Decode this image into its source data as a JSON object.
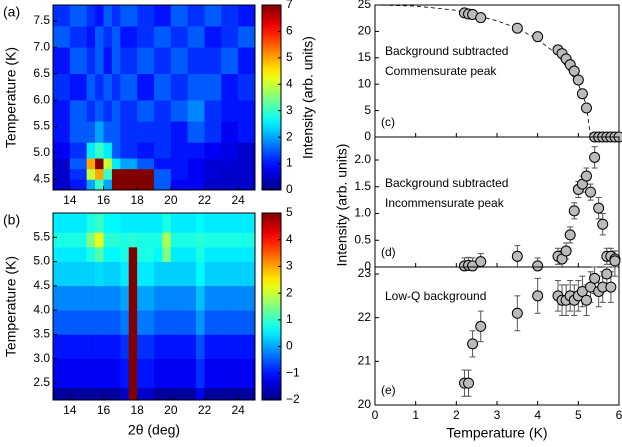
{
  "chart_data": [
    {
      "type": "heatmap",
      "label": "(a)",
      "xlabel": null,
      "ylabel": "Temperature (K)",
      "colorbar_label": "Intensity (arb. units)",
      "cmap": "jet",
      "x_edges": [
        13,
        14,
        15,
        15.5,
        16,
        16.5,
        17,
        18,
        19,
        20,
        21,
        22,
        23,
        24,
        25
      ],
      "y_edges": [
        4.3,
        4.5,
        4.7,
        4.9,
        5.2,
        5.6,
        6.0,
        6.5,
        7.0,
        7.4,
        7.8
      ],
      "z": [
        [
          0.5,
          1,
          2,
          3,
          2,
          7,
          7,
          7,
          1.5,
          0.8,
          0.8,
          0.5,
          0.5,
          0.5
        ],
        [
          0.5,
          1.2,
          4,
          5,
          3,
          7,
          7,
          7,
          1.5,
          1,
          0.8,
          0.6,
          0.5,
          0.5
        ],
        [
          0.5,
          1.5,
          5,
          7,
          4,
          2.5,
          2,
          1.5,
          1,
          1,
          0.8,
          0.6,
          0.6,
          0.5
        ],
        [
          0.8,
          1.2,
          2.5,
          3,
          2.5,
          1.5,
          1.2,
          1,
          1.2,
          1,
          1,
          0.8,
          0.7,
          0.5
        ],
        [
          1,
          1.5,
          1.5,
          2,
          1.5,
          1.5,
          1.2,
          1.2,
          1.2,
          1,
          1.5,
          1.2,
          0.8,
          1
        ],
        [
          1,
          1.5,
          1.2,
          1.5,
          1.2,
          1.5,
          1.2,
          1.5,
          1.2,
          1.5,
          1.8,
          1.2,
          1,
          1
        ],
        [
          1.2,
          1,
          1.5,
          1.2,
          1.5,
          1.2,
          1.5,
          1,
          1.5,
          1.2,
          1.5,
          1.5,
          1,
          1.2
        ],
        [
          1,
          1.5,
          1.2,
          1.5,
          1,
          1.5,
          1.2,
          1.5,
          1.2,
          1.5,
          1.2,
          1.2,
          1.5,
          1
        ],
        [
          1.5,
          1.2,
          1,
          1.5,
          1.2,
          1.5,
          1,
          1.2,
          1.5,
          1.2,
          1.5,
          1,
          1.2,
          1.5
        ],
        [
          1.2,
          1.5,
          1.2,
          1,
          1.5,
          1.2,
          1.5,
          1.2,
          1,
          1.5,
          1.2,
          1.5,
          1.2,
          1
        ]
      ],
      "xlim": [
        13,
        25
      ],
      "xticks": [
        14,
        16,
        18,
        20,
        22,
        24
      ],
      "ylim": [
        4.3,
        7.8
      ],
      "yticks": [
        4.5,
        {
          "value": 5,
          "label": "5.0"
        },
        5.5,
        {
          "value": 6,
          "label": "6.0"
        },
        6.5,
        {
          "value": 7,
          "label": "7.0"
        },
        7.5
      ],
      "zlim": [
        0,
        7
      ],
      "zticks": [
        0,
        1,
        2,
        3,
        4,
        5,
        6,
        7
      ]
    },
    {
      "type": "heatmap",
      "label": "(b)",
      "xlabel": "2θ  (deg)",
      "ylabel": "Temperature (K)",
      "colorbar_label": null,
      "cmap": "jet",
      "x_edges": [
        13,
        14,
        15,
        15.5,
        16,
        17,
        17.5,
        18,
        19,
        19.5,
        20,
        21,
        21.5,
        22,
        23,
        24,
        25
      ],
      "y_edges": [
        2.15,
        2.4,
        3.0,
        3.5,
        4.0,
        4.5,
        5.0,
        5.3,
        5.6,
        6.0
      ],
      "z": [
        [
          -1.8,
          -1.8,
          -1.8,
          -1.8,
          -1.8,
          -1.5,
          5,
          -1.5,
          -1.8,
          -1.8,
          -1.8,
          -1.8,
          -1.2,
          -1.8,
          -1.8,
          -1.8
        ],
        [
          -1.2,
          -1.2,
          -1.2,
          -1.2,
          -1.2,
          -1,
          5,
          -1,
          -1.2,
          -1.2,
          -1.2,
          -1.2,
          -0.8,
          -1.2,
          -1.2,
          -1.2
        ],
        [
          -1,
          -1,
          -1,
          -1,
          -1,
          -0.8,
          5,
          -0.8,
          -1,
          -1,
          -1,
          -1,
          -0.6,
          -1,
          -1,
          -1
        ],
        [
          -0.5,
          -0.5,
          -0.5,
          -0.5,
          -0.5,
          -0.3,
          5,
          -0.3,
          -0.5,
          -0.5,
          -0.5,
          -0.5,
          -0.1,
          -0.5,
          -0.5,
          -0.5
        ],
        [
          -0.2,
          -0.2,
          -0.2,
          -0.2,
          -0.2,
          0,
          5,
          0,
          -0.2,
          -0.2,
          -0.2,
          -0.2,
          0.2,
          -0.2,
          -0.2,
          -0.2
        ],
        [
          0.3,
          0.3,
          0.3,
          0.4,
          0.3,
          0.5,
          5,
          0.5,
          0.3,
          0.3,
          0.3,
          0.3,
          0.6,
          0.3,
          0.3,
          0.3
        ],
        [
          0.5,
          0.5,
          0.8,
          1.2,
          0.6,
          0.8,
          5,
          0.8,
          0.6,
          1.5,
          0.5,
          0.5,
          0.8,
          0.5,
          0.5,
          0.5
        ],
        [
          0.8,
          0.8,
          1.5,
          2.2,
          0.9,
          0.8,
          0.9,
          0.8,
          0.8,
          1.8,
          0.8,
          0.8,
          0.9,
          0.8,
          0.8,
          0.8
        ],
        [
          0.5,
          0.5,
          0.8,
          1,
          0.6,
          0.5,
          0.5,
          0.5,
          0.5,
          0.8,
          0.5,
          0.5,
          0.6,
          0.5,
          0.5,
          0.5
        ]
      ],
      "xlim": [
        13,
        25
      ],
      "xticks": [
        14,
        16,
        18,
        20,
        22,
        24
      ],
      "ylim": [
        2.15,
        6.0
      ],
      "yticks": [
        2.5,
        {
          "value": 3,
          "label": "3.0"
        },
        3.5,
        {
          "value": 4,
          "label": "4.0"
        },
        4.5,
        {
          "value": 5,
          "label": "5.0"
        },
        5.5
      ],
      "zlim": [
        -2,
        5
      ],
      "zticks": [
        {
          "value": -2,
          "label": "−2"
        },
        {
          "value": -1,
          "label": "−1"
        },
        0,
        1,
        2,
        3,
        4,
        5
      ]
    },
    {
      "type": "scatter",
      "label": "(c)",
      "annotations": [
        "Background subtracted",
        "Commensurate peak"
      ],
      "x": [
        2.2,
        2.3,
        2.4,
        2.6,
        3.5,
        4.0,
        4.5,
        4.6,
        4.7,
        4.8,
        4.9,
        5.0,
        5.1,
        5.2,
        5.4,
        5.5,
        5.6,
        5.7,
        5.8,
        5.9,
        6.0
      ],
      "series": [
        {
          "color": "#bbbbbb",
          "values": [
            23.5,
            23.3,
            23.2,
            22.6,
            20.6,
            19.0,
            16.5,
            15.8,
            14.8,
            13.7,
            12.5,
            10.8,
            8.2,
            5.5,
            0,
            0,
            0,
            0,
            0,
            0,
            0
          ],
          "errors": [
            0.3,
            0.3,
            0.3,
            0.3,
            0.3,
            0.3,
            0.3,
            0.3,
            0.3,
            0.3,
            0.3,
            0.3,
            0.3,
            0.3,
            0.3,
            0.3,
            0.3,
            0.3,
            0.3,
            0.3,
            0.3
          ]
        }
      ],
      "fit": {
        "x": [
          0,
          1,
          2,
          3,
          3.5,
          4,
          4.5,
          5,
          5.2,
          5.3
        ],
        "values": [
          25,
          24.8,
          24,
          22,
          20.6,
          18.5,
          15.5,
          10,
          6,
          0
        ]
      },
      "xlim": [
        0,
        6
      ],
      "ylim": [
        0,
        25
      ],
      "yticks": [
        0,
        5,
        10,
        15,
        20,
        25
      ]
    },
    {
      "type": "scatter",
      "label": "(d)",
      "annotations": [
        "Background subtracted",
        "Incommensurate peak"
      ],
      "ylabel": "Intensity (arb. units)",
      "x": [
        2.2,
        2.3,
        2.4,
        2.6,
        3.5,
        4.0,
        4.5,
        4.6,
        4.7,
        4.8,
        4.9,
        5.0,
        5.1,
        5.2,
        5.3,
        5.4,
        5.5,
        5.6,
        5.7,
        5.8,
        5.9
      ],
      "series": [
        {
          "color": "#bbbbbb",
          "values": [
            0.02,
            0.03,
            0.02,
            0.1,
            0.2,
            0.02,
            0.2,
            0.15,
            0.3,
            0.6,
            1.05,
            1.45,
            1.55,
            1.7,
            1.4,
            2.05,
            1.1,
            0.8,
            0.2,
            0.2,
            0.15
          ],
          "errors": [
            0.15,
            0.15,
            0.15,
            0.15,
            0.2,
            0.15,
            0.15,
            0.15,
            0.15,
            0.15,
            0.15,
            0.15,
            0.15,
            0.15,
            0.15,
            0.2,
            0.2,
            0.2,
            0.15,
            0.15,
            0.15
          ]
        }
      ],
      "xlim": [
        0,
        6
      ],
      "ylim": [
        0,
        2.43
      ],
      "yticks": [
        0,
        0.5,
        {
          "value": 1,
          "label": "1.0"
        },
        1.5,
        {
          "value": 2,
          "label": "2.0"
        }
      ]
    },
    {
      "type": "scatter",
      "label": "(e)",
      "annotations": [
        "Low-Q background"
      ],
      "xlabel": "Temperature (K)",
      "x": [
        2.2,
        2.3,
        2.4,
        2.6,
        3.5,
        4.0,
        4.5,
        4.6,
        4.7,
        4.8,
        4.9,
        5.0,
        5.1,
        5.2,
        5.3,
        5.4,
        5.5,
        5.6,
        5.7,
        5.8,
        5.9
      ],
      "series": [
        {
          "color": "#bbbbbb",
          "values": [
            20.5,
            20.5,
            21.4,
            21.8,
            22.1,
            22.5,
            22.5,
            22.4,
            22.4,
            22.5,
            22.4,
            22.5,
            22.6,
            22.4,
            22.7,
            22.9,
            22.6,
            22.7,
            23.0,
            22.7,
            23.3
          ],
          "errors": [
            0.3,
            0.3,
            0.3,
            0.35,
            0.4,
            0.4,
            0.35,
            0.35,
            0.35,
            0.35,
            0.35,
            0.35,
            0.35,
            0.35,
            0.35,
            0.35,
            0.35,
            0.35,
            0.35,
            0.35,
            0.35
          ]
        }
      ],
      "xlim": [
        0,
        6
      ],
      "xticks": [
        0,
        1,
        2,
        3,
        4,
        5,
        6
      ],
      "ylim": [
        20,
        23.16
      ],
      "yticks": [
        20,
        21,
        22,
        23
      ]
    }
  ]
}
